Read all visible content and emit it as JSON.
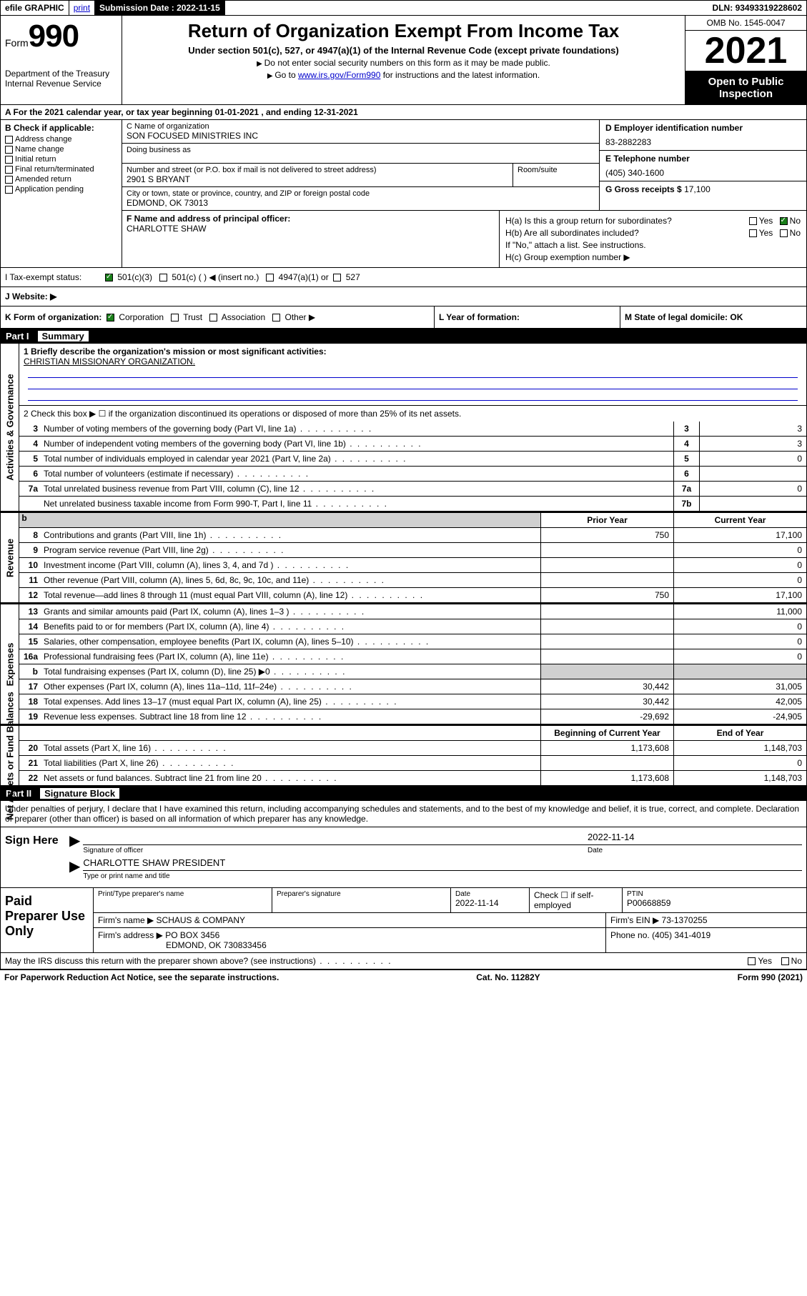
{
  "topbar": {
    "efile": "efile GRAPHIC",
    "print": "print",
    "submission_label": "Submission Date :",
    "submission_date": "2022-11-15",
    "dln_label": "DLN:",
    "dln": "93493319228602"
  },
  "header": {
    "form_label": "Form",
    "form_num": "990",
    "dept": "Department of the Treasury",
    "irs": "Internal Revenue Service",
    "title": "Return of Organization Exempt From Income Tax",
    "sub": "Under section 501(c), 527, or 4947(a)(1) of the Internal Revenue Code (except private foundations)",
    "line1": "Do not enter social security numbers on this form as it may be made public.",
    "line2_pre": "Go to ",
    "line2_link": "www.irs.gov/Form990",
    "line2_post": " for instructions and the latest information.",
    "omb": "OMB No. 1545-0047",
    "year": "2021",
    "open": "Open to Public Inspection"
  },
  "rowA": "A For the 2021 calendar year, or tax year beginning 01-01-2021   , and ending 12-31-2021",
  "colB": {
    "title": "B Check if applicable:",
    "items": [
      "Address change",
      "Name change",
      "Initial return",
      "Final return/terminated",
      "Amended return",
      "Application pending"
    ]
  },
  "nameblock": {
    "c_lbl": "C Name of organization",
    "c_val": "SON FOCUSED MINISTRIES INC",
    "dba_lbl": "Doing business as",
    "dba_val": "",
    "addr_lbl": "Number and street (or P.O. box if mail is not delivered to street address)",
    "addr_val": "2901 S BRYANT",
    "room_lbl": "Room/suite",
    "city_lbl": "City or town, state or province, country, and ZIP or foreign postal code",
    "city_val": "EDMOND, OK  73013",
    "d_lbl": "D Employer identification number",
    "d_val": "83-2882283",
    "e_lbl": "E Telephone number",
    "e_val": "(405) 340-1600",
    "g_lbl": "G Gross receipts $",
    "g_val": "17,100"
  },
  "fg": {
    "f_lbl": "F Name and address of principal officer:",
    "f_val": "CHARLOTTE SHAW",
    "ha": "H(a)  Is this a group return for subordinates?",
    "hb": "H(b)  Are all subordinates included?",
    "hb_note": "If \"No,\" attach a list. See instructions.",
    "hc": "H(c)  Group exemption number ▶"
  },
  "status": {
    "lbl": "I   Tax-exempt status:",
    "opts": [
      "501(c)(3)",
      "501(c) (  ) ◀ (insert no.)",
      "4947(a)(1) or",
      "527"
    ]
  },
  "website": "J   Website: ▶",
  "kl": {
    "k": "K Form of organization:",
    "k_opts": [
      "Corporation",
      "Trust",
      "Association",
      "Other ▶"
    ],
    "l": "L Year of formation:",
    "m": "M State of legal domicile: OK"
  },
  "part1": {
    "hdr_num": "Part I",
    "hdr_title": "Summary",
    "side_labels": [
      "Activities & Governance",
      "Revenue",
      "Expenses",
      "Net Assets or Fund Balances"
    ],
    "q1_lbl": "1   Briefly describe the organization's mission or most significant activities:",
    "q1_val": "CHRISTIAN MISSIONARY ORGANIZATION.",
    "q2": "2   Check this box ▶ ☐  if the organization discontinued its operations or disposed of more than 25% of its net assets.",
    "gov_rows": [
      {
        "n": "3",
        "t": "Number of voting members of the governing body (Part VI, line 1a)",
        "b": "3",
        "v": "3"
      },
      {
        "n": "4",
        "t": "Number of independent voting members of the governing body (Part VI, line 1b)",
        "b": "4",
        "v": "3"
      },
      {
        "n": "5",
        "t": "Total number of individuals employed in calendar year 2021 (Part V, line 2a)",
        "b": "5",
        "v": "0"
      },
      {
        "n": "6",
        "t": "Total number of volunteers (estimate if necessary)",
        "b": "6",
        "v": ""
      },
      {
        "n": "7a",
        "t": "Total unrelated business revenue from Part VIII, column (C), line 12",
        "b": "7a",
        "v": "0"
      },
      {
        "n": "",
        "t": "Net unrelated business taxable income from Form 990-T, Part I, line 11",
        "b": "7b",
        "v": ""
      }
    ],
    "col_hdr_prior": "Prior Year",
    "col_hdr_curr": "Current Year",
    "rev_rows": [
      {
        "n": "8",
        "t": "Contributions and grants (Part VIII, line 1h)",
        "p": "750",
        "c": "17,100"
      },
      {
        "n": "9",
        "t": "Program service revenue (Part VIII, line 2g)",
        "p": "",
        "c": "0"
      },
      {
        "n": "10",
        "t": "Investment income (Part VIII, column (A), lines 3, 4, and 7d )",
        "p": "",
        "c": "0"
      },
      {
        "n": "11",
        "t": "Other revenue (Part VIII, column (A), lines 5, 6d, 8c, 9c, 10c, and 11e)",
        "p": "",
        "c": "0"
      },
      {
        "n": "12",
        "t": "Total revenue—add lines 8 through 11 (must equal Part VIII, column (A), line 12)",
        "p": "750",
        "c": "17,100"
      }
    ],
    "exp_rows": [
      {
        "n": "13",
        "t": "Grants and similar amounts paid (Part IX, column (A), lines 1–3 )",
        "p": "",
        "c": "11,000"
      },
      {
        "n": "14",
        "t": "Benefits paid to or for members (Part IX, column (A), line 4)",
        "p": "",
        "c": "0"
      },
      {
        "n": "15",
        "t": "Salaries, other compensation, employee benefits (Part IX, column (A), lines 5–10)",
        "p": "",
        "c": "0"
      },
      {
        "n": "16a",
        "t": "Professional fundraising fees (Part IX, column (A), line 11e)",
        "p": "",
        "c": "0"
      },
      {
        "n": "b",
        "t": "Total fundraising expenses (Part IX, column (D), line 25) ▶0",
        "p": "shade",
        "c": "shade"
      },
      {
        "n": "17",
        "t": "Other expenses (Part IX, column (A), lines 11a–11d, 11f–24e)",
        "p": "30,442",
        "c": "31,005"
      },
      {
        "n": "18",
        "t": "Total expenses. Add lines 13–17 (must equal Part IX, column (A), line 25)",
        "p": "30,442",
        "c": "42,005"
      },
      {
        "n": "19",
        "t": "Revenue less expenses. Subtract line 18 from line 12",
        "p": "-29,692",
        "c": "-24,905"
      }
    ],
    "net_hdr_beg": "Beginning of Current Year",
    "net_hdr_end": "End of Year",
    "net_rows": [
      {
        "n": "20",
        "t": "Total assets (Part X, line 16)",
        "p": "1,173,608",
        "c": "1,148,703"
      },
      {
        "n": "21",
        "t": "Total liabilities (Part X, line 26)",
        "p": "",
        "c": "0"
      },
      {
        "n": "22",
        "t": "Net assets or fund balances. Subtract line 21 from line 20",
        "p": "1,173,608",
        "c": "1,148,703"
      }
    ]
  },
  "part2": {
    "hdr_num": "Part II",
    "hdr_title": "Signature Block",
    "decl": "Under penalties of perjury, I declare that I have examined this return, including accompanying schedules and statements, and to the best of my knowledge and belief, it is true, correct, and complete. Declaration of preparer (other than officer) is based on all information of which preparer has any knowledge.",
    "sign_here": "Sign Here",
    "sig_officer_lbl": "Signature of officer",
    "sig_date": "2022-11-14",
    "sig_date_lbl": "Date",
    "sig_name": "CHARLOTTE SHAW  PRESIDENT",
    "sig_name_lbl": "Type or print name and title",
    "paid_lbl": "Paid Preparer Use Only",
    "prep_name_lbl": "Print/Type preparer's name",
    "prep_sig_lbl": "Preparer's signature",
    "prep_date_lbl": "Date",
    "prep_date": "2022-11-14",
    "prep_check_lbl": "Check ☐ if self-employed",
    "ptin_lbl": "PTIN",
    "ptin": "P00668859",
    "firm_name_lbl": "Firm's name   ▶",
    "firm_name": "SCHAUS & COMPANY",
    "firm_ein_lbl": "Firm's EIN ▶",
    "firm_ein": "73-1370255",
    "firm_addr_lbl": "Firm's address ▶",
    "firm_addr1": "PO BOX 3456",
    "firm_addr2": "EDMOND, OK  730833456",
    "firm_phone_lbl": "Phone no.",
    "firm_phone": "(405) 341-4019",
    "may_irs": "May the IRS discuss this return with the preparer shown above? (see instructions)",
    "footer_left": "For Paperwork Reduction Act Notice, see the separate instructions.",
    "footer_mid": "Cat. No. 11282Y",
    "footer_right": "Form 990 (2021)"
  }
}
